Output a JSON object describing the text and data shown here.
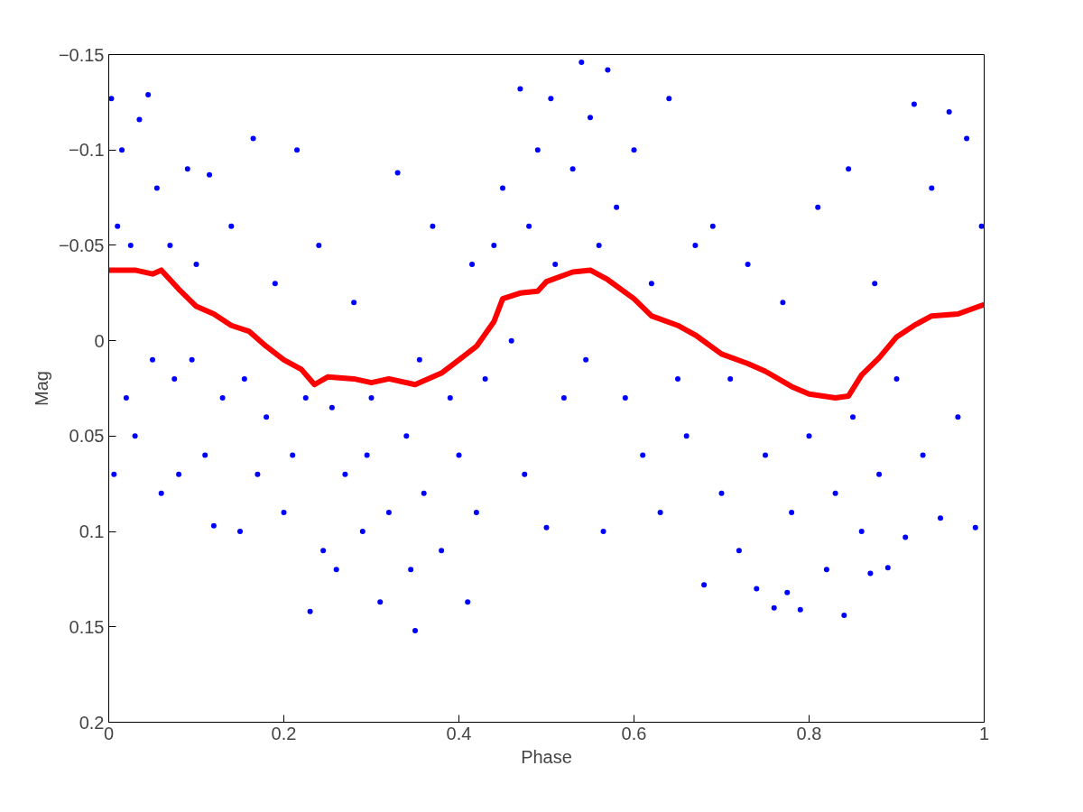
{
  "chart_data": {
    "type": "scatter",
    "xlabel": "Phase",
    "ylabel": "Mag",
    "xlim": [
      0,
      1
    ],
    "xticks": [
      0,
      0.2,
      0.4,
      0.6,
      0.8,
      1
    ],
    "ylim": [
      0.2,
      -0.15
    ],
    "yticks": [
      -0.15,
      -0.1,
      -0.05,
      0,
      0.05,
      0.1,
      0.15,
      0.2
    ],
    "grid": false,
    "series": [
      {
        "marker": "circle",
        "color": "#0000ff",
        "x": [
          0.003,
          0.006,
          0.01,
          0.015,
          0.02,
          0.025,
          0.03,
          0.035,
          0.045,
          0.05,
          0.055,
          0.06,
          0.07,
          0.075,
          0.08,
          0.09,
          0.095,
          0.1,
          0.11,
          0.115,
          0.12,
          0.13,
          0.14,
          0.15,
          0.155,
          0.165,
          0.17,
          0.18,
          0.19,
          0.2,
          0.21,
          0.215,
          0.225,
          0.23,
          0.24,
          0.245,
          0.255,
          0.26,
          0.27,
          0.28,
          0.29,
          0.295,
          0.3,
          0.31,
          0.32,
          0.33,
          0.34,
          0.345,
          0.35,
          0.355,
          0.36,
          0.37,
          0.38,
          0.39,
          0.4,
          0.41,
          0.415,
          0.42,
          0.43,
          0.44,
          0.45,
          0.46,
          0.47,
          0.475,
          0.48,
          0.49,
          0.5,
          0.505,
          0.51,
          0.52,
          0.53,
          0.54,
          0.545,
          0.55,
          0.56,
          0.565,
          0.57,
          0.58,
          0.59,
          0.6,
          0.61,
          0.62,
          0.63,
          0.64,
          0.65,
          0.66,
          0.67,
          0.68,
          0.69,
          0.7,
          0.71,
          0.72,
          0.73,
          0.74,
          0.75,
          0.76,
          0.77,
          0.775,
          0.78,
          0.79,
          0.8,
          0.81,
          0.82,
          0.83,
          0.84,
          0.845,
          0.85,
          0.86,
          0.87,
          0.875,
          0.88,
          0.89,
          0.9,
          0.91,
          0.92,
          0.93,
          0.94,
          0.95,
          0.96,
          0.97,
          0.98,
          0.99,
          0.997
        ],
        "values": [
          -0.127,
          0.07,
          -0.06,
          -0.1,
          0.03,
          -0.05,
          0.05,
          -0.116,
          -0.129,
          0.01,
          -0.08,
          0.08,
          -0.05,
          0.02,
          0.07,
          -0.09,
          0.01,
          -0.04,
          0.06,
          -0.087,
          0.097,
          0.03,
          -0.06,
          0.1,
          0.02,
          -0.106,
          0.07,
          0.04,
          -0.03,
          0.09,
          0.06,
          -0.1,
          0.03,
          0.142,
          -0.05,
          0.11,
          0.035,
          0.12,
          0.07,
          -0.02,
          0.1,
          0.06,
          0.03,
          0.137,
          0.09,
          -0.088,
          0.05,
          0.12,
          0.152,
          0.01,
          0.08,
          -0.06,
          0.11,
          0.03,
          0.06,
          0.137,
          -0.04,
          0.09,
          0.02,
          -0.05,
          -0.08,
          0.0,
          -0.132,
          0.07,
          -0.06,
          -0.1,
          0.098,
          -0.127,
          -0.04,
          0.03,
          -0.09,
          -0.146,
          0.01,
          -0.117,
          -0.05,
          0.1,
          -0.142,
          -0.07,
          0.03,
          -0.1,
          0.06,
          -0.03,
          0.09,
          -0.127,
          0.02,
          0.05,
          -0.05,
          0.128,
          -0.06,
          0.08,
          0.02,
          0.11,
          -0.04,
          0.13,
          0.06,
          0.14,
          -0.02,
          0.132,
          0.09,
          0.141,
          0.05,
          -0.07,
          0.12,
          0.08,
          0.144,
          -0.09,
          0.04,
          0.1,
          0.122,
          -0.03,
          0.07,
          0.119,
          0.02,
          0.103,
          -0.124,
          0.06,
          -0.08,
          0.093,
          -0.12,
          0.04,
          -0.106,
          0.098,
          -0.06
        ]
      },
      {
        "type": "line",
        "marker": "none",
        "color": "#ff0000",
        "line_style": "solid",
        "x": [
          0,
          0.03,
          0.05,
          0.06,
          0.08,
          0.1,
          0.12,
          0.14,
          0.16,
          0.18,
          0.2,
          0.22,
          0.235,
          0.25,
          0.28,
          0.3,
          0.32,
          0.35,
          0.38,
          0.4,
          0.42,
          0.44,
          0.45,
          0.47,
          0.49,
          0.5,
          0.53,
          0.55,
          0.57,
          0.6,
          0.62,
          0.65,
          0.67,
          0.7,
          0.73,
          0.75,
          0.78,
          0.8,
          0.83,
          0.845,
          0.86,
          0.88,
          0.9,
          0.92,
          0.94,
          0.97,
          1.0
        ],
        "values": [
          -0.037,
          -0.037,
          -0.035,
          -0.037,
          -0.027,
          -0.018,
          -0.014,
          -0.008,
          -0.005,
          0.003,
          0.01,
          0.015,
          0.023,
          0.019,
          0.02,
          0.022,
          0.02,
          0.023,
          0.017,
          0.01,
          0.003,
          -0.01,
          -0.022,
          -0.025,
          -0.026,
          -0.031,
          -0.036,
          -0.037,
          -0.032,
          -0.022,
          -0.013,
          -0.008,
          -0.003,
          0.007,
          0.012,
          0.016,
          0.024,
          0.028,
          0.03,
          0.029,
          0.018,
          0.009,
          -0.002,
          -0.008,
          -0.013,
          -0.014,
          -0.019
        ]
      }
    ]
  }
}
